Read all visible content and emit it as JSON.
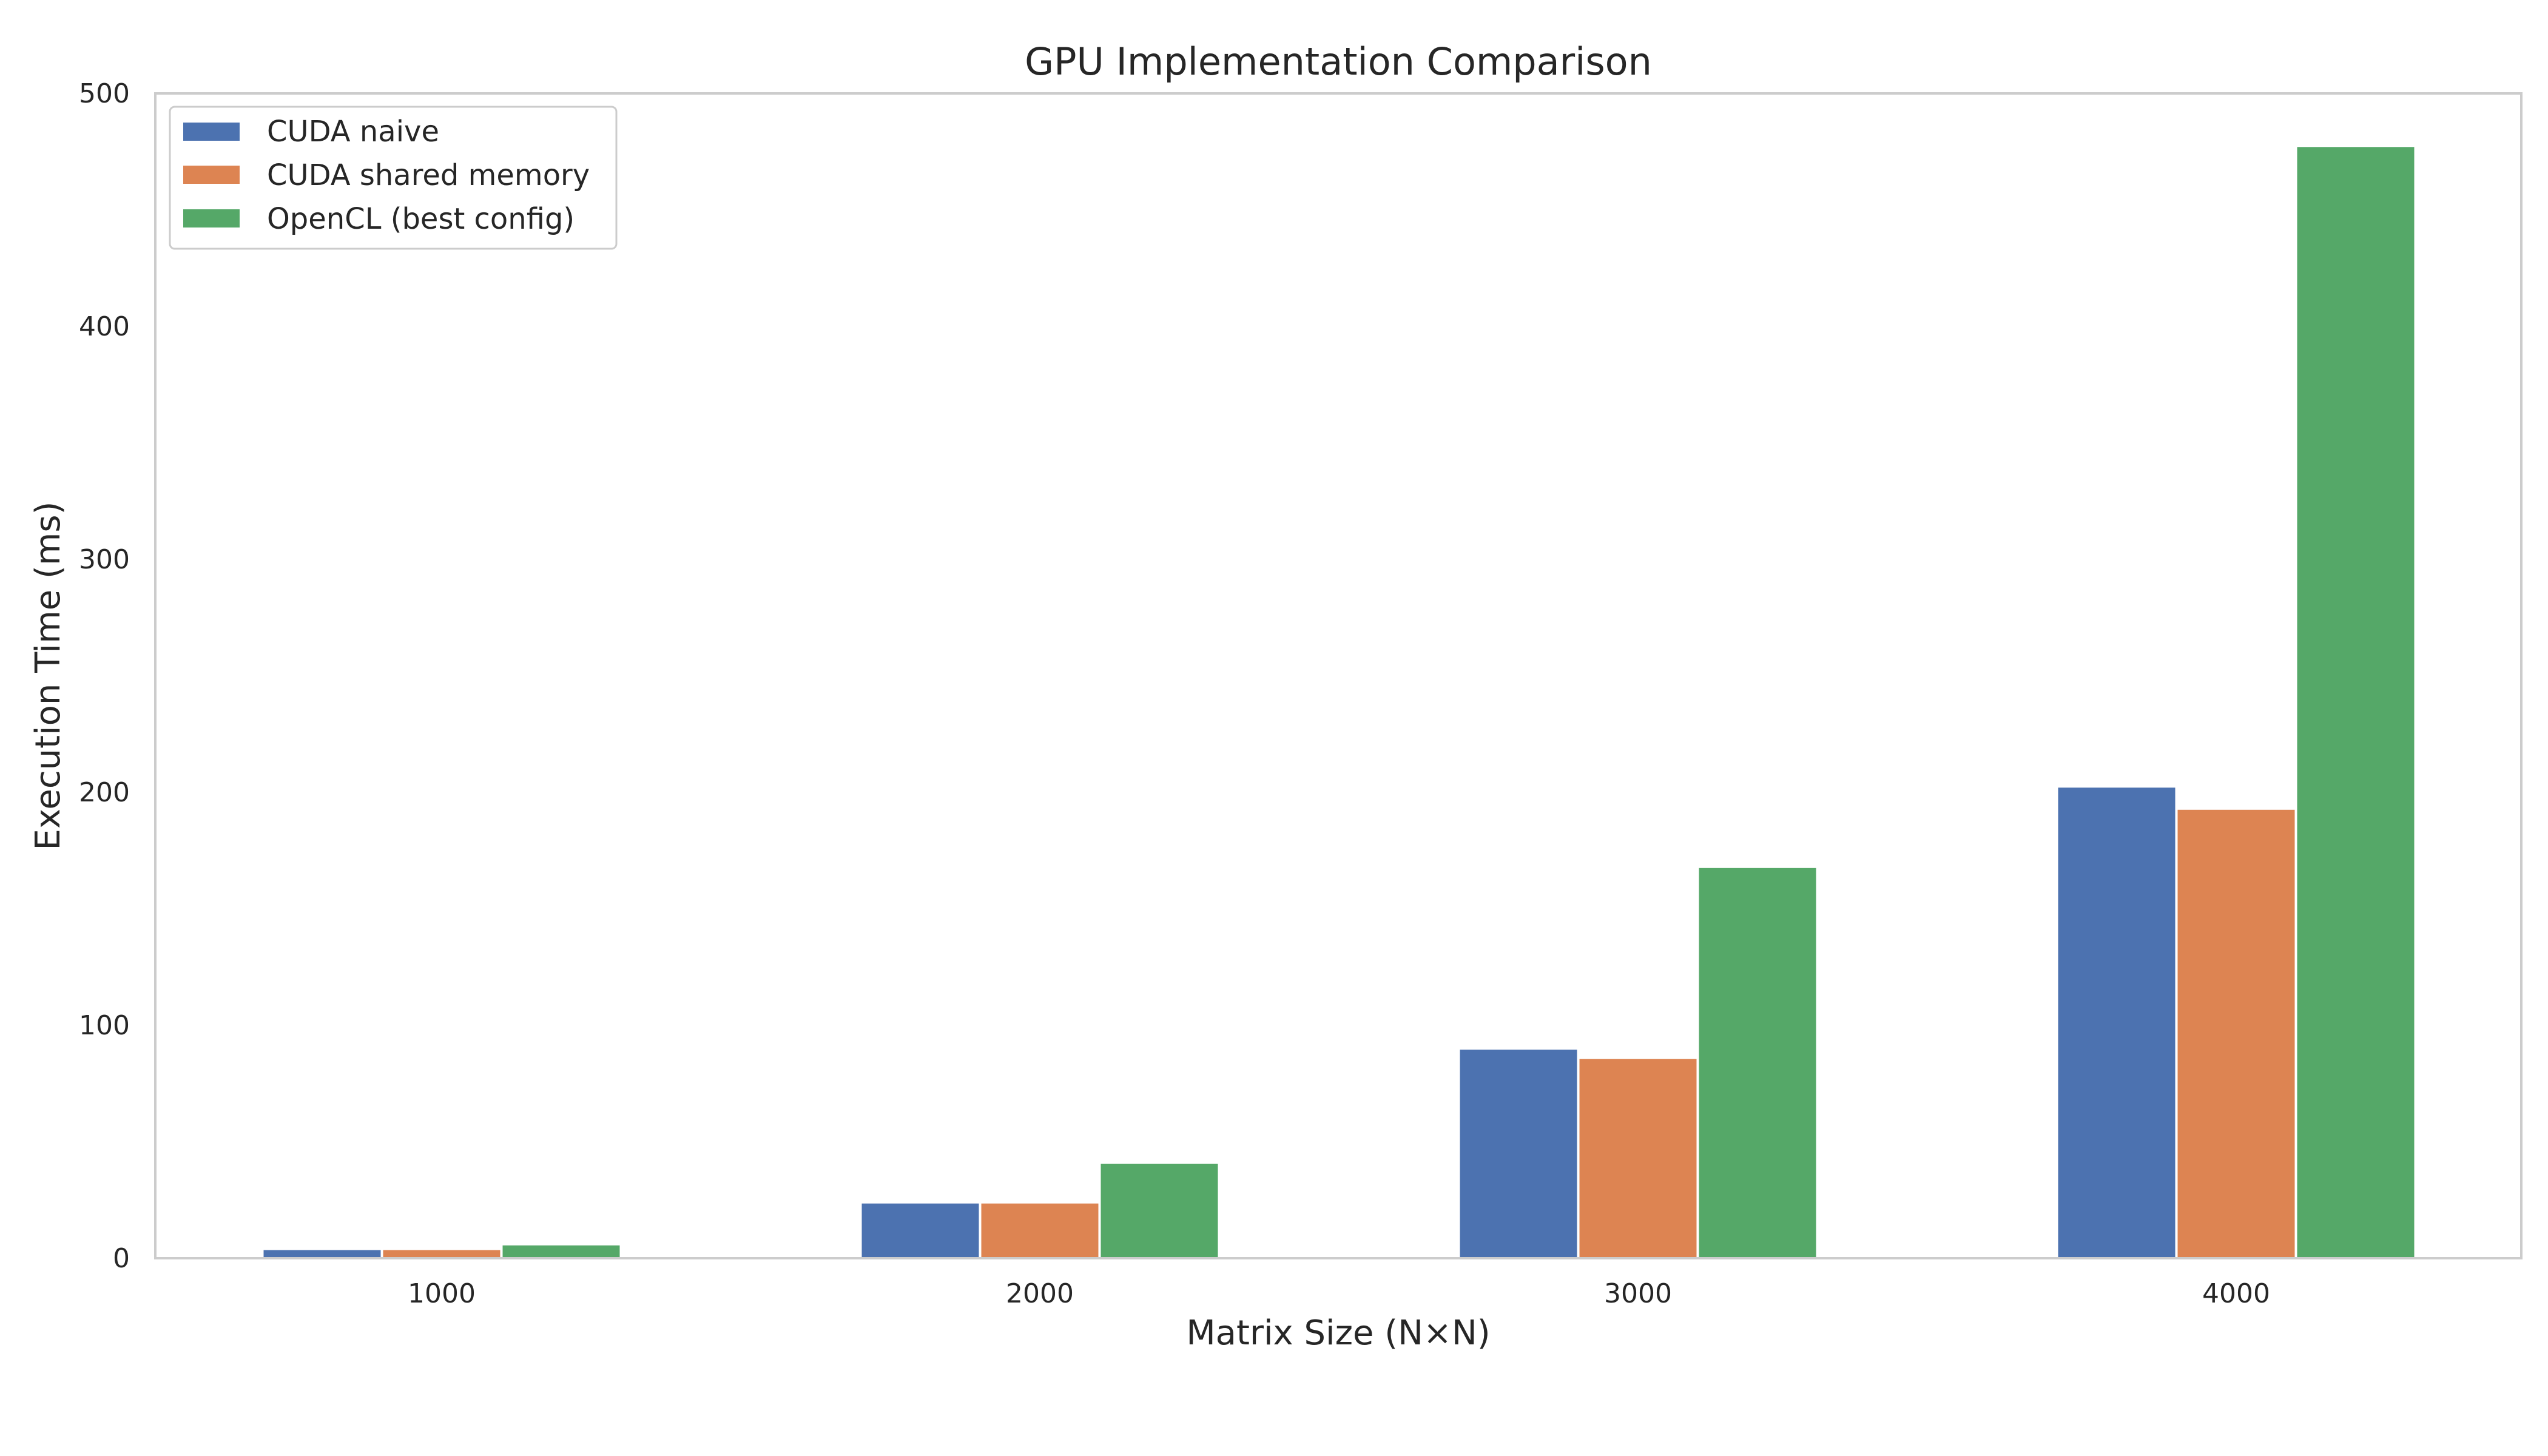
{
  "chart_data": {
    "type": "bar",
    "title": "GPU Implementation Comparison",
    "xlabel": "Matrix Size (N×N)",
    "ylabel": "Execution Time (ms)",
    "categories": [
      "1000",
      "2000",
      "3000",
      "4000"
    ],
    "ylim": [
      0,
      500
    ],
    "yticks": [
      "0",
      "100",
      "200",
      "300",
      "400",
      "500"
    ],
    "grid": false,
    "legend_position": "top-left",
    "series": [
      {
        "name": "CUDA naive",
        "color": "#4C72B0",
        "values": [
          3.5,
          23.5,
          89.5,
          202
        ]
      },
      {
        "name": "CUDA shared memory",
        "color": "#DD8452",
        "values": [
          3.5,
          23.5,
          85.5,
          192.5
        ]
      },
      {
        "name": "OpenCL (best config)",
        "color": "#55A868",
        "values": [
          5.5,
          40.5,
          167.5,
          477
        ]
      }
    ]
  }
}
